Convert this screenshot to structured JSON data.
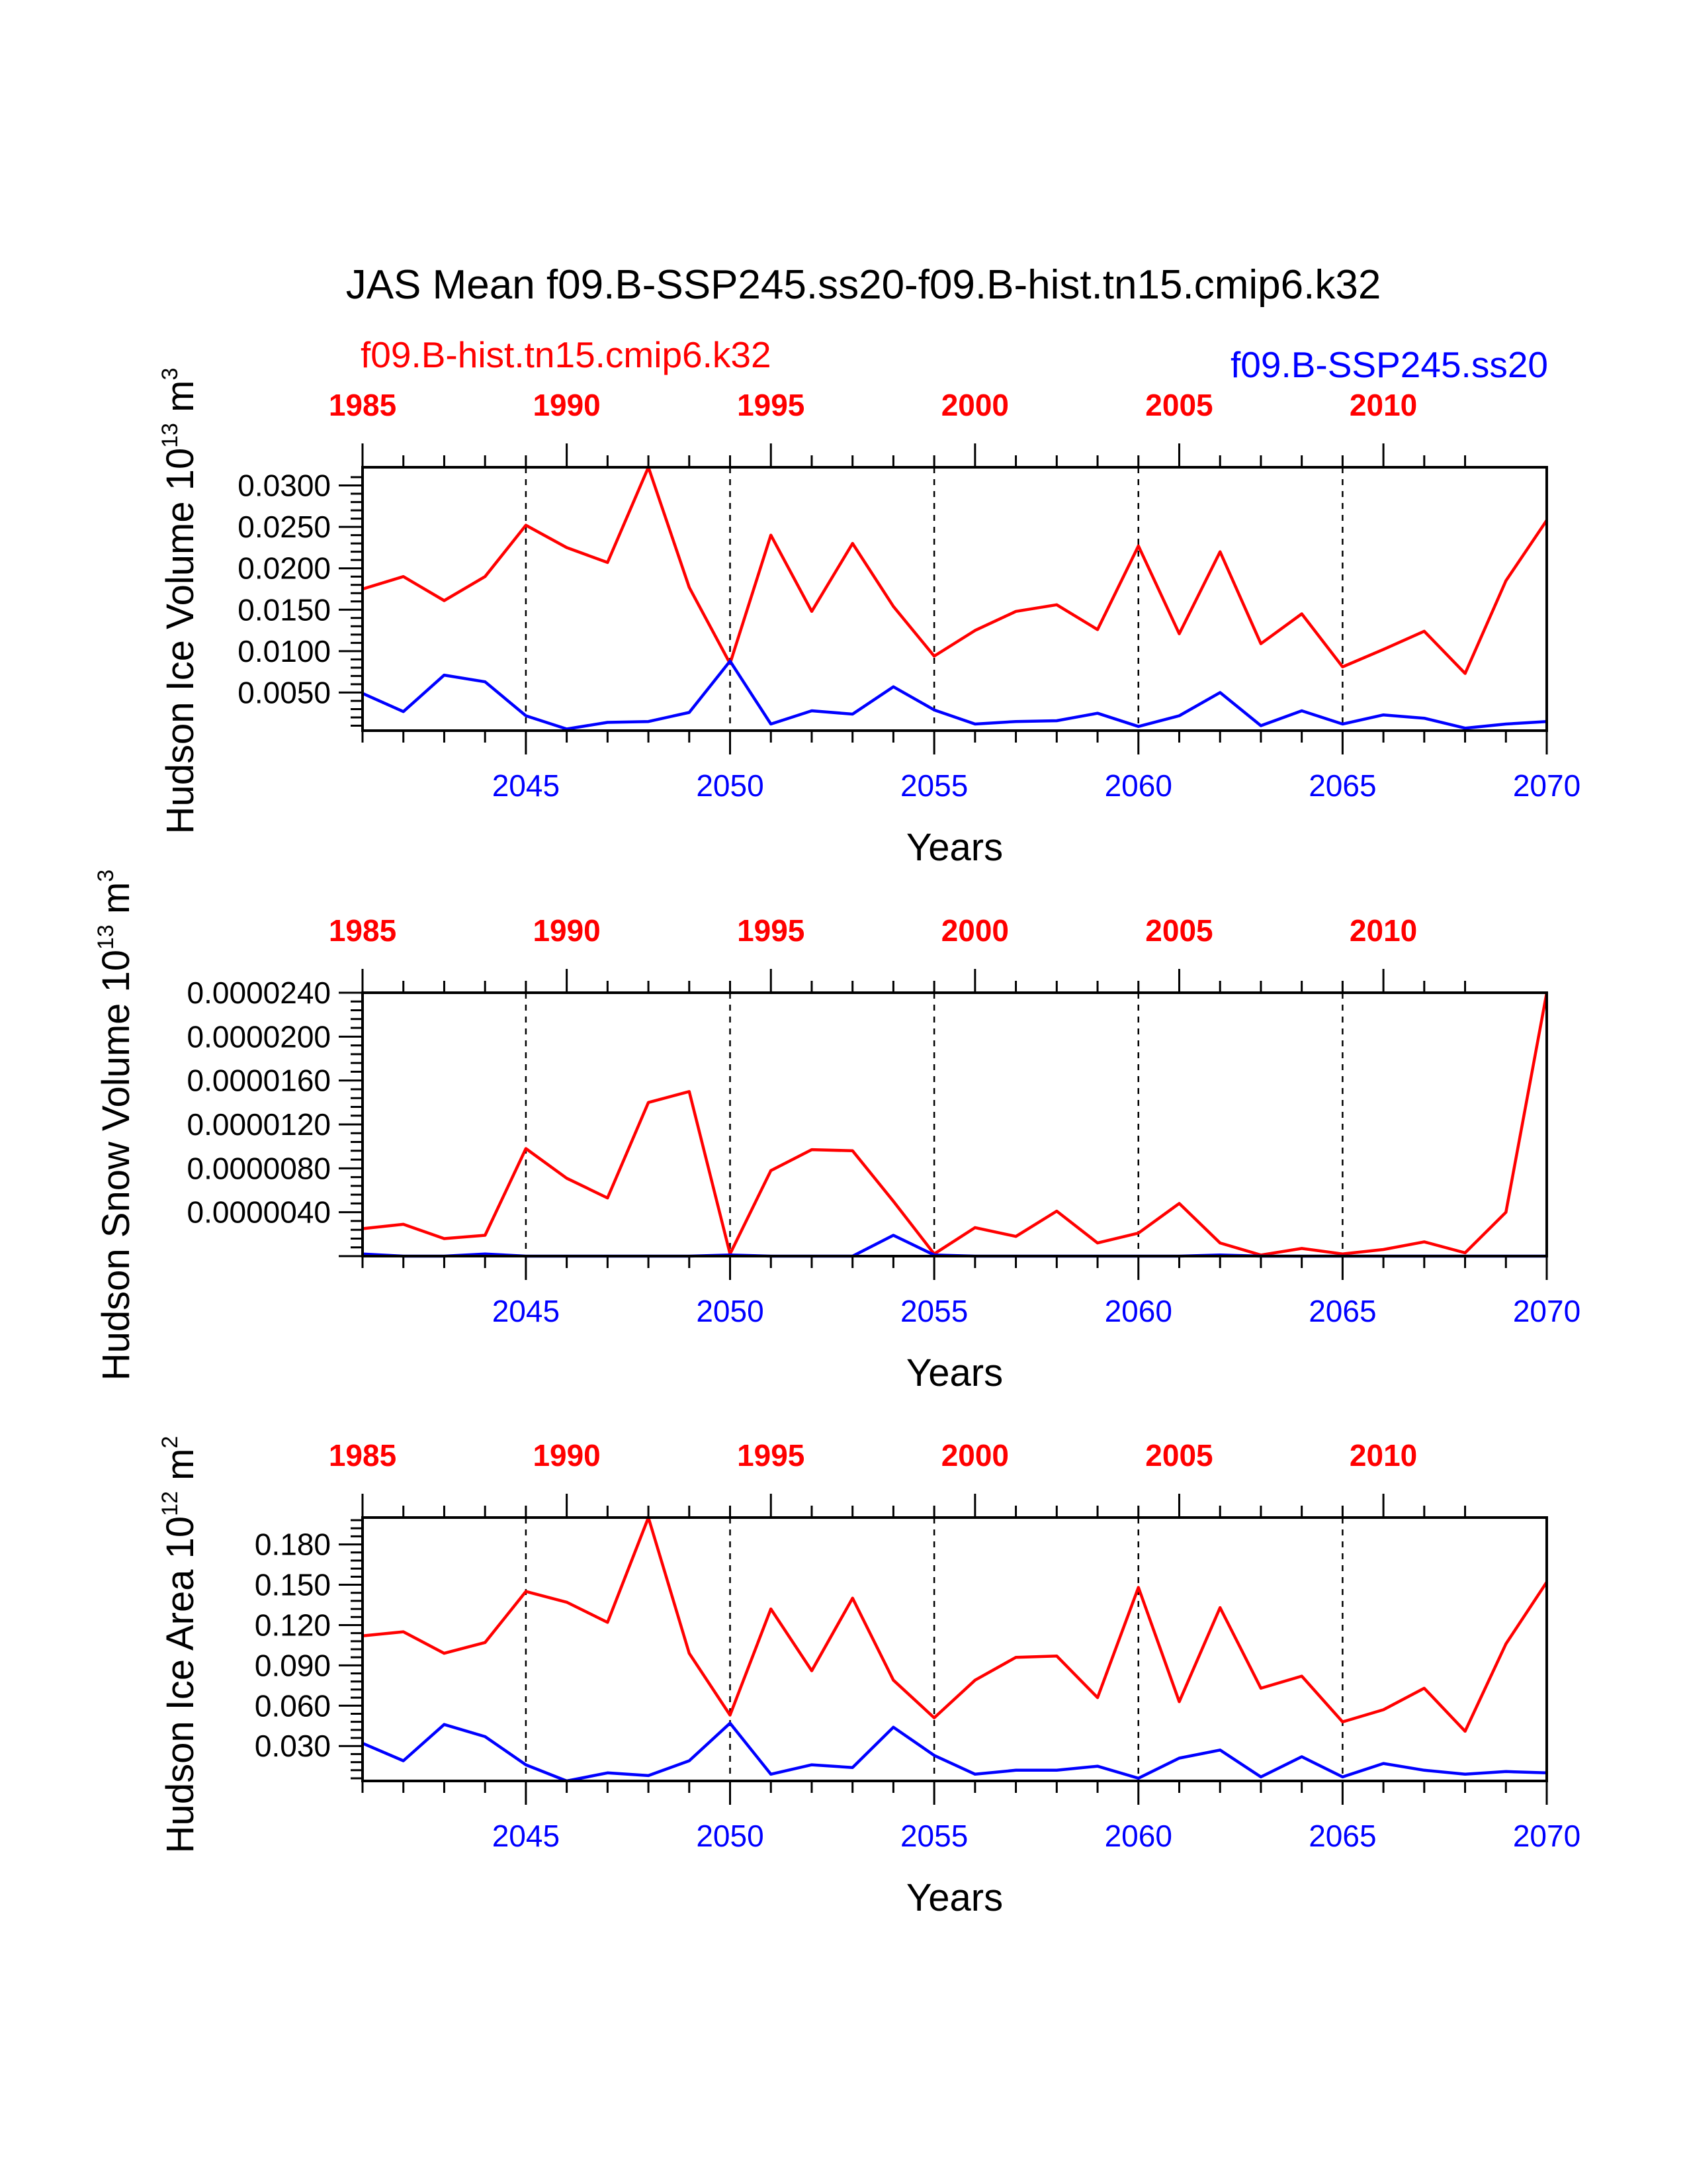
{
  "title": "JAS Mean f09.B-SSP245.ss20-f09.B-hist.tn15.cmip6.k32",
  "legend": {
    "left_label": "f09.B-hist.tn15.cmip6.k32",
    "right_label": "f09.B-SSP245.ss20"
  },
  "colors": {
    "hist": "#ff0000",
    "ssp": "#0000ff",
    "axis": "#000000"
  },
  "x_title": "Years",
  "bottom_ticks": [
    "2045",
    "2050",
    "2055",
    "2060",
    "2065",
    "2070"
  ],
  "top_ticks": [
    "1985",
    "1990",
    "1995",
    "2000",
    "2005",
    "2010"
  ],
  "chart_data": [
    {
      "type": "line",
      "ylabel_main": "Hudson Ice Volume 10",
      "ylabel_exp": "13",
      "ylabel_unit": " m",
      "ylabel_unit_exp": "3",
      "x": [
        2041,
        2042,
        2043,
        2044,
        2045,
        2046,
        2047,
        2048,
        2049,
        2050,
        2051,
        2052,
        2053,
        2054,
        2055,
        2056,
        2057,
        2058,
        2059,
        2060,
        2061,
        2062,
        2063,
        2064,
        2065,
        2066,
        2067,
        2068,
        2069,
        2070
      ],
      "xlim": [
        2041,
        2070
      ],
      "ylim": [
        0.0004,
        0.0322
      ],
      "yticks": [
        "0.0050",
        "0.0100",
        "0.0150",
        "0.0200",
        "0.0250",
        "0.0300"
      ],
      "ytick_values": [
        0.005,
        0.01,
        0.015,
        0.02,
        0.025,
        0.03
      ],
      "series": [
        {
          "name": "f09.B-hist.tn15.cmip6.k32",
          "color": "#ff0000",
          "values": [
            0.0175,
            0.019,
            0.0161,
            0.019,
            0.0252,
            0.0225,
            0.0207,
            0.0322,
            0.0177,
            0.0085,
            0.024,
            0.0148,
            0.023,
            0.0154,
            0.0094,
            0.0125,
            0.0148,
            0.0156,
            0.0126,
            0.0227,
            0.0121,
            0.022,
            0.0109,
            0.0145,
            0.0081,
            0.0102,
            0.0124,
            0.0073,
            0.0185,
            0.0258
          ]
        },
        {
          "name": "f09.B-SSP245.ss20",
          "color": "#0000ff",
          "values": [
            0.0049,
            0.0027,
            0.0071,
            0.0063,
            0.0022,
            0.0006,
            0.0014,
            0.0015,
            0.0026,
            0.0088,
            0.0012,
            0.0028,
            0.0024,
            0.0057,
            0.0029,
            0.0012,
            0.0015,
            0.0016,
            0.0025,
            0.0009,
            0.0022,
            0.005,
            0.001,
            0.0028,
            0.0012,
            0.0023,
            0.0019,
            0.0007,
            0.0012,
            0.0015
          ]
        }
      ]
    },
    {
      "type": "line",
      "ylabel_main": "Hudson Snow Volume 10",
      "ylabel_exp": "13",
      "ylabel_unit": " m",
      "ylabel_unit_exp": "3",
      "x": [
        2041,
        2042,
        2043,
        2044,
        2045,
        2046,
        2047,
        2048,
        2049,
        2050,
        2051,
        2052,
        2053,
        2054,
        2055,
        2056,
        2057,
        2058,
        2059,
        2060,
        2061,
        2062,
        2063,
        2064,
        2065,
        2066,
        2067,
        2068,
        2069,
        2070
      ],
      "xlim": [
        2041,
        2070
      ],
      "ylim": [
        0,
        2.4e-05
      ],
      "yticks": [
        "0.0000040",
        "0.0000080",
        "0.0000120",
        "0.0000160",
        "0.0000200",
        "0.0000240"
      ],
      "ytick_values": [
        4e-06,
        8e-06,
        1.2e-05,
        1.6e-05,
        2e-05,
        2.4e-05
      ],
      "series": [
        {
          "name": "f09.B-hist.tn15.cmip6.k32",
          "color": "#ff0000",
          "values": [
            2.5e-06,
            2.9e-06,
            1.6e-06,
            1.9e-06,
            9.8e-06,
            7.1e-06,
            5.3e-06,
            1.4e-05,
            1.5e-05,
            2e-07,
            7.8e-06,
            9.7e-06,
            9.6e-06,
            5e-06,
            2e-07,
            2.6e-06,
            1.8e-06,
            4.1e-06,
            1.2e-06,
            2.1e-06,
            4.8e-06,
            1.2e-06,
            1e-07,
            7e-07,
            2e-07,
            6e-07,
            1.3e-06,
            3e-07,
            4e-06,
            2.4e-05
          ]
        },
        {
          "name": "f09.B-SSP245.ss20",
          "color": "#0000ff",
          "values": [
            2e-07,
            0,
            0,
            2e-07,
            0,
            0,
            0,
            0,
            0,
            1e-07,
            0,
            0,
            0,
            1.9e-06,
            1e-07,
            0,
            0,
            0,
            0,
            0,
            0,
            1e-07,
            0,
            0,
            0,
            0,
            0,
            0,
            0,
            0
          ]
        }
      ]
    },
    {
      "type": "line",
      "ylabel_main": "Hudson Ice Area 10",
      "ylabel_exp": "12",
      "ylabel_unit": " m",
      "ylabel_unit_exp": "2",
      "x": [
        2041,
        2042,
        2043,
        2044,
        2045,
        2046,
        2047,
        2048,
        2049,
        2050,
        2051,
        2052,
        2053,
        2054,
        2055,
        2056,
        2057,
        2058,
        2059,
        2060,
        2061,
        2062,
        2063,
        2064,
        2065,
        2066,
        2067,
        2068,
        2069,
        2070
      ],
      "xlim": [
        2041,
        2070
      ],
      "ylim": [
        0.004,
        0.2
      ],
      "yticks": [
        "0.030",
        "0.060",
        "0.090",
        "0.120",
        "0.150",
        "0.180"
      ],
      "ytick_values": [
        0.03,
        0.06,
        0.09,
        0.12,
        0.15,
        0.18
      ],
      "series": [
        {
          "name": "f09.B-hist.tn15.cmip6.k32",
          "color": "#ff0000",
          "values": [
            0.112,
            0.115,
            0.099,
            0.107,
            0.145,
            0.137,
            0.122,
            0.2,
            0.099,
            0.053,
            0.132,
            0.086,
            0.14,
            0.079,
            0.051,
            0.079,
            0.096,
            0.097,
            0.066,
            0.148,
            0.063,
            0.133,
            0.073,
            0.082,
            0.048,
            0.057,
            0.073,
            0.041,
            0.106,
            0.152
          ]
        },
        {
          "name": "f09.B-SSP245.ss20",
          "color": "#0000ff",
          "values": [
            0.032,
            0.019,
            0.046,
            0.037,
            0.016,
            0.004,
            0.01,
            0.008,
            0.019,
            0.047,
            0.009,
            0.016,
            0.014,
            0.044,
            0.023,
            0.009,
            0.012,
            0.012,
            0.015,
            0.006,
            0.021,
            0.027,
            0.007,
            0.022,
            0.007,
            0.017,
            0.012,
            0.009,
            0.011,
            0.01
          ]
        }
      ]
    }
  ]
}
